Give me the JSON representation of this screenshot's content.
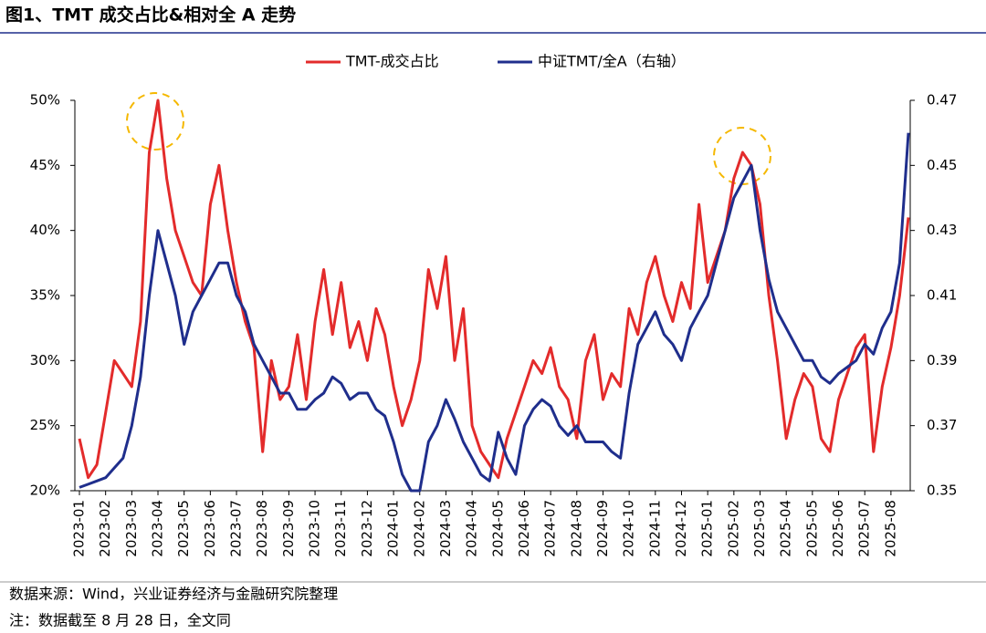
{
  "chart_data": {
    "type": "line",
    "title": "图1、TMT 成交占比&相对全 A 走势",
    "source": "数据来源：Wind，兴业证券经济与金融研究院整理",
    "note": "注：数据截至 8 月 28 日，全文同",
    "categories": [
      "2023-01",
      null,
      null,
      "2023-02",
      null,
      null,
      "2023-03",
      null,
      null,
      "2023-04",
      null,
      null,
      "2023-05",
      null,
      null,
      "2023-06",
      null,
      null,
      "2023-07",
      null,
      null,
      "2023-08",
      null,
      null,
      "2023-09",
      null,
      null,
      "2023-10",
      null,
      null,
      "2023-11",
      null,
      null,
      "2023-12",
      null,
      null,
      "2024-01",
      null,
      null,
      "2024-02",
      null,
      null,
      "2024-03",
      null,
      null,
      "2024-04",
      null,
      null,
      "2024-05",
      null,
      null,
      "2024-06",
      null,
      null,
      "2024-07",
      null,
      null,
      "2024-08",
      null,
      null,
      "2024-09",
      null,
      null,
      "2024-10",
      null,
      null,
      "2024-11",
      null,
      null,
      "2024-12",
      null,
      null,
      "2025-01",
      null,
      null,
      "2025-02",
      null,
      null,
      "2025-03",
      null,
      null,
      "2025-04",
      null,
      null,
      "2025-05",
      null,
      null,
      "2025-06",
      null,
      null,
      "2025-07",
      null,
      null,
      "2025-08",
      null,
      null
    ],
    "series": [
      {
        "name": "TMT-成交占比",
        "color": "#e32b2b",
        "axis": "y",
        "values": [
          24,
          21,
          22,
          26,
          30,
          29,
          28,
          33,
          46,
          50,
          44,
          40,
          38,
          36,
          35,
          42,
          45,
          40,
          36,
          33,
          31,
          23,
          30,
          27,
          28,
          32,
          27,
          33,
          37,
          32,
          36,
          31,
          33,
          30,
          34,
          32,
          28,
          25,
          27,
          30,
          37,
          34,
          38,
          30,
          34,
          25,
          23,
          22,
          21,
          24,
          26,
          28,
          30,
          29,
          31,
          28,
          27,
          24,
          30,
          32,
          27,
          29,
          28,
          34,
          32,
          36,
          38,
          35,
          33,
          36,
          34,
          42,
          36,
          38,
          40,
          44,
          46,
          45,
          42,
          35,
          30,
          24,
          27,
          29,
          28,
          24,
          23,
          27,
          29,
          31,
          32,
          23,
          28,
          31,
          35,
          41
        ]
      },
      {
        "name": "中证TMT/全A（右轴）",
        "color": "#1f2e8c",
        "axis": "y2",
        "values": [
          0.351,
          0.352,
          0.353,
          0.354,
          0.357,
          0.36,
          0.37,
          0.385,
          0.41,
          0.43,
          0.42,
          0.41,
          0.395,
          0.405,
          0.41,
          0.415,
          0.42,
          0.42,
          0.41,
          0.405,
          0.395,
          0.39,
          0.385,
          0.38,
          0.38,
          0.375,
          0.375,
          0.378,
          0.38,
          0.385,
          0.383,
          0.378,
          0.38,
          0.38,
          0.375,
          0.373,
          0.365,
          0.355,
          0.35,
          0.35,
          0.365,
          0.37,
          0.378,
          0.372,
          0.365,
          0.36,
          0.355,
          0.353,
          0.368,
          0.36,
          0.355,
          0.37,
          0.375,
          0.378,
          0.376,
          0.37,
          0.367,
          0.37,
          0.365,
          0.365,
          0.365,
          0.362,
          0.36,
          0.38,
          0.395,
          0.4,
          0.405,
          0.398,
          0.395,
          0.39,
          0.4,
          0.405,
          0.41,
          0.42,
          0.43,
          0.44,
          0.445,
          0.45,
          0.43,
          0.415,
          0.405,
          0.4,
          0.395,
          0.39,
          0.39,
          0.385,
          0.383,
          0.386,
          0.388,
          0.39,
          0.395,
          0.392,
          0.4,
          0.405,
          0.42,
          0.46
        ]
      }
    ],
    "ylim": [
      20,
      50
    ],
    "yticks": [
      {
        "value": 20,
        "label": "20%"
      },
      {
        "value": 25,
        "label": "25%"
      },
      {
        "value": 30,
        "label": "30%"
      },
      {
        "value": 35,
        "label": "35%"
      },
      {
        "value": 40,
        "label": "40%"
      },
      {
        "value": 45,
        "label": "45%"
      },
      {
        "value": 50,
        "label": "50%"
      }
    ],
    "y2lim": [
      0.35,
      0.47
    ],
    "y2ticks": [
      0.35,
      0.37,
      0.39,
      0.41,
      0.43,
      0.45,
      0.47
    ],
    "grid": false,
    "legend": "top"
  }
}
